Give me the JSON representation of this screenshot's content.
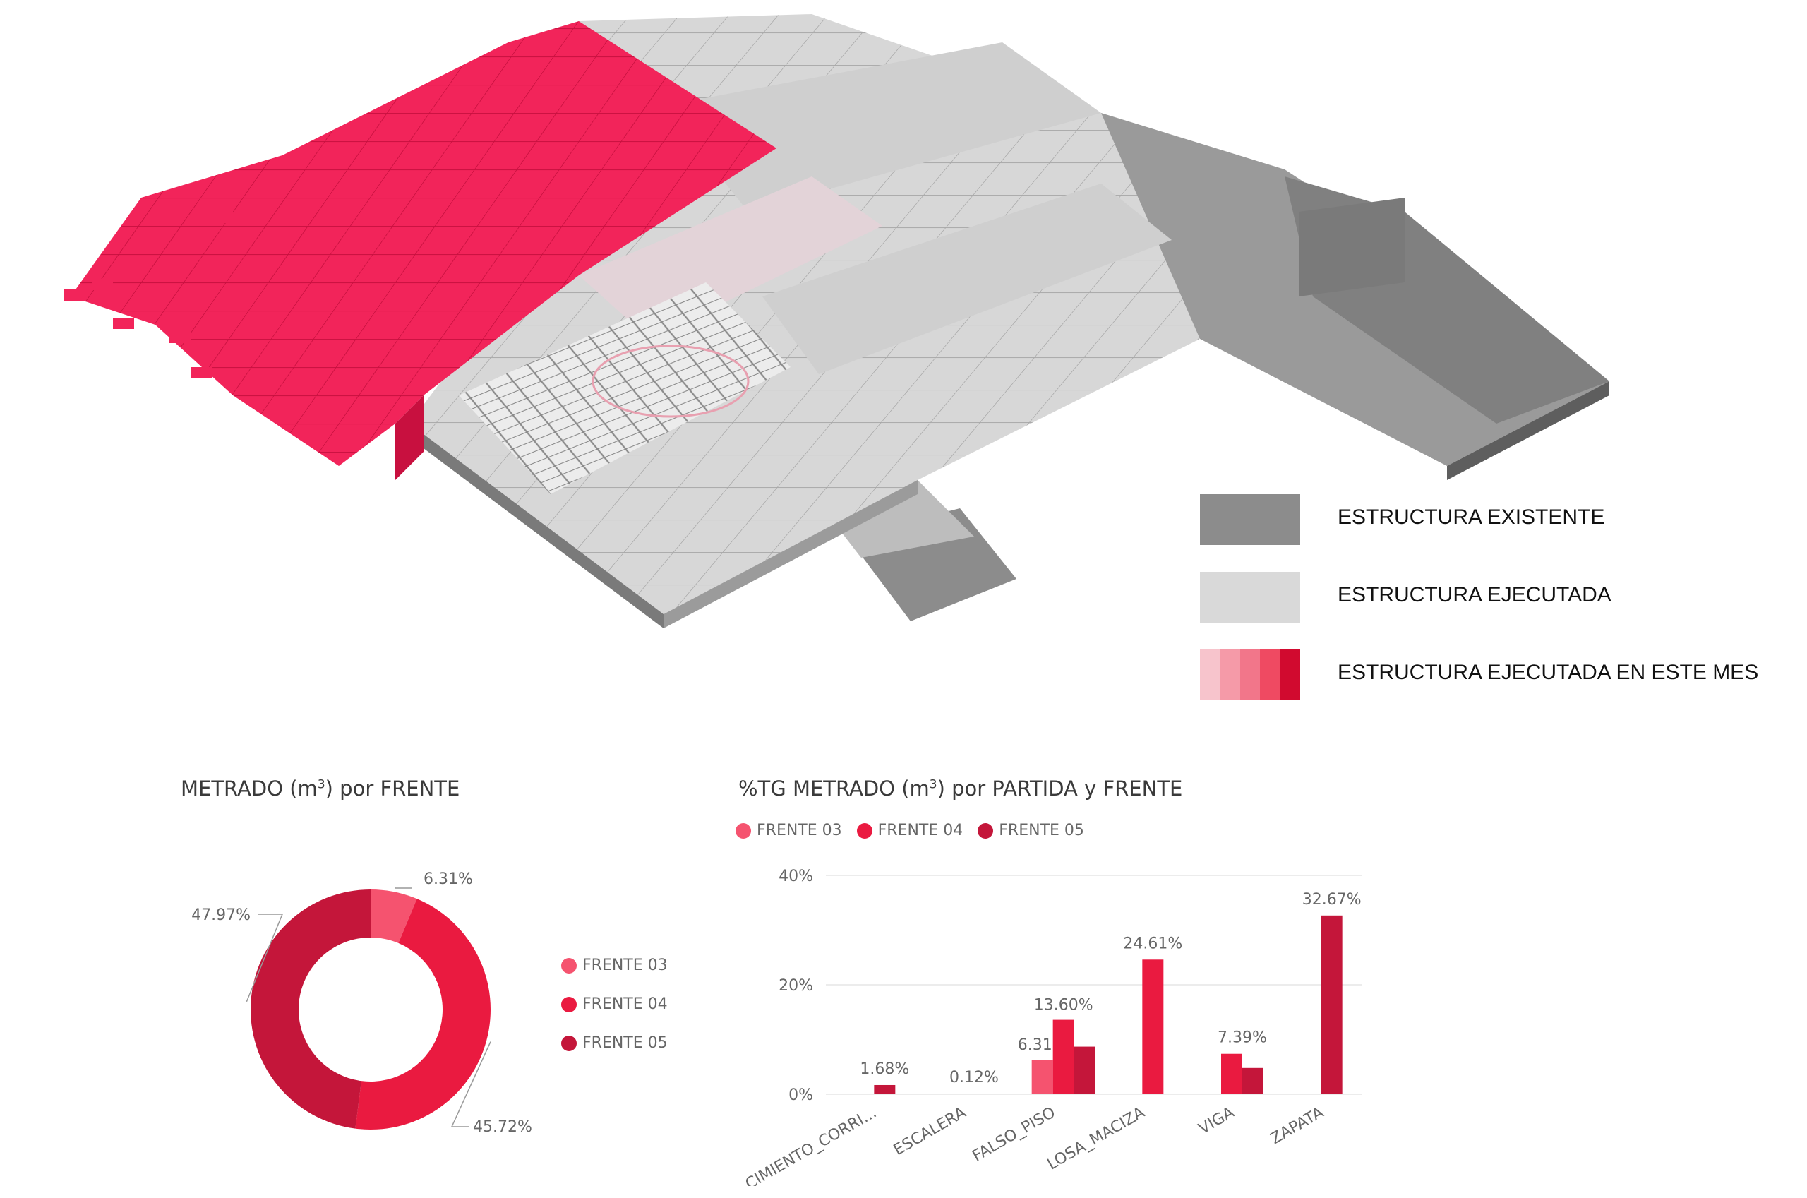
{
  "legend": [
    {
      "label": "ESTRUCTURA EXISTENTE",
      "color": "#8c8c8c"
    },
    {
      "label": "ESTRUCTURA EJECUTADA",
      "color": "#d9d9d9"
    },
    {
      "label": "ESTRUCTURA EJECUTADA EN ESTE MES",
      "colors": [
        "#f7c4cc",
        "#f59aa8",
        "#f2768a",
        "#ef4a62",
        "#d10a2f"
      ]
    }
  ],
  "colors": {
    "frente_03": "#f5536f",
    "frente_04": "#ea1a40",
    "frente_05": "#c4163a",
    "model_existing": "#8c8c8c",
    "model_executed": "#d9d9d9",
    "model_month": "#f2245a"
  },
  "chart_data": [
    {
      "type": "pie",
      "donut": true,
      "title_prefix": "METRADO (m",
      "title_sup": "3",
      "title_suffix": ") por FRENTE",
      "categories": [
        "FRENTE 03",
        "FRENTE 04",
        "FRENTE 05"
      ],
      "values": [
        6.31,
        45.72,
        47.97
      ],
      "labels": [
        "6.31%",
        "45.72%",
        "47.97%"
      ],
      "legend_position": "right"
    },
    {
      "type": "bar",
      "title_prefix": "%TG METRADO (m",
      "title_sup": "3",
      "title_suffix": ") por PARTIDA y FRENTE",
      "categories": [
        "CIMIENTO_CORRI...",
        "ESCALERA",
        "FALSO_PISO",
        "LOSA_MACIZA",
        "VIGA",
        "ZAPATA"
      ],
      "series": [
        {
          "name": "FRENTE 03",
          "values": [
            null,
            null,
            6.31,
            null,
            null,
            null
          ]
        },
        {
          "name": "FRENTE 04",
          "values": [
            null,
            null,
            13.6,
            24.61,
            7.39,
            null
          ]
        },
        {
          "name": "FRENTE 05",
          "values": [
            1.68,
            0.12,
            8.7,
            null,
            4.8,
            32.67
          ]
        }
      ],
      "data_labels": [
        {
          "category": "CIMIENTO_CORRI...",
          "text": "1.68%"
        },
        {
          "category": "ESCALERA",
          "text": "0.12%"
        },
        {
          "category": "FALSO_PISO",
          "text": "6.31%",
          "series": "FRENTE 03"
        },
        {
          "category": "FALSO_PISO",
          "text": "13.60%",
          "series": "FRENTE 04"
        },
        {
          "category": "LOSA_MACIZA",
          "text": "24.61%"
        },
        {
          "category": "VIGA",
          "text": "7.39%"
        },
        {
          "category": "ZAPATA",
          "text": "32.67%"
        }
      ],
      "yticks": [
        "0%",
        "20%",
        "40%"
      ],
      "ylim": [
        0,
        40
      ],
      "legend_position": "top-left",
      "grid": true
    }
  ]
}
